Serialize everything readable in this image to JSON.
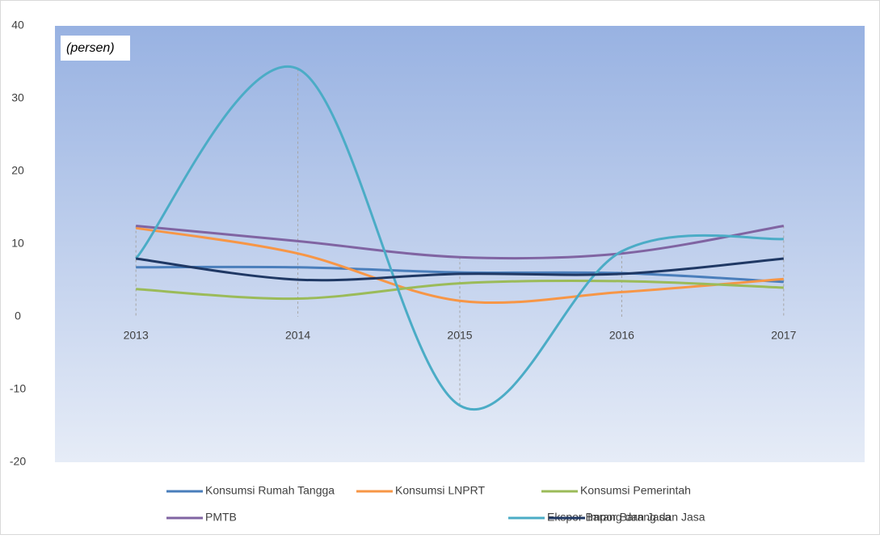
{
  "chart_data": {
    "type": "line",
    "annotation": "(persen)",
    "categories": [
      "2013",
      "2014",
      "2015",
      "2016",
      "2017"
    ],
    "ylim": [
      -20,
      40
    ],
    "yticks": [
      -20,
      -10,
      0,
      10,
      20,
      30,
      40
    ],
    "series": [
      {
        "name": "Konsumsi Rumah Tangga",
        "color": "#4a7ebb",
        "values": [
          6.8,
          6.8,
          6.1,
          6.0,
          4.8
        ]
      },
      {
        "name": "Konsumsi LNPRT",
        "color": "#f79646",
        "values": [
          12.2,
          8.7,
          2.2,
          3.4,
          5.2
        ]
      },
      {
        "name": "Konsumsi Pemerintah",
        "color": "#9bbb59",
        "values": [
          3.8,
          2.5,
          4.6,
          4.9,
          4.0
        ]
      },
      {
        "name": "PMTB",
        "color": "#8064a2",
        "values": [
          12.5,
          10.4,
          8.2,
          8.7,
          12.5
        ]
      },
      {
        "name": "Ekspor Barang dan Jasa",
        "color": "#4bacc6",
        "values": [
          8.0,
          34.1,
          -12.2,
          9.0,
          10.7
        ]
      },
      {
        "name": "Impor Barang dan Jasa",
        "color": "#1f3864",
        "values": [
          8.0,
          5.1,
          5.9,
          5.9,
          8.0
        ]
      }
    ]
  }
}
